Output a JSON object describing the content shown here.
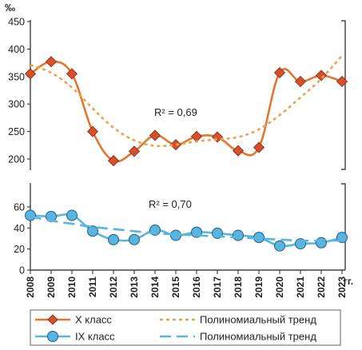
{
  "chart_data": {
    "type": "line",
    "unit_label": "‰",
    "x_suffix": "гг.",
    "x": [
      2008,
      2009,
      2010,
      2011,
      2012,
      2013,
      2014,
      2015,
      2016,
      2017,
      2018,
      2019,
      2020,
      2021,
      2022,
      2023
    ],
    "panels": [
      {
        "ylim": [
          175,
          450
        ],
        "yticks": [
          200,
          250,
          300,
          350,
          400,
          450
        ],
        "r2_label": "R² = 0,69",
        "series": [
          {
            "name": "X класс",
            "color": "#e2782f",
            "marker": "diamond",
            "marker_fill": "#d94f2b",
            "values": [
              355,
              377,
              355,
              250,
              197,
              214,
              243,
              226,
              241,
              240,
              215,
              221,
              357,
              341,
              352,
              341
            ]
          },
          {
            "name": "Полиномиальный тренд",
            "color": "#f0a050",
            "style": "dotted",
            "values": [
              371,
              357,
              330,
              292,
              257,
              234,
              224,
              226,
              232,
              236,
              240,
              254,
              280,
              312,
              346,
              388
            ]
          }
        ]
      },
      {
        "ylim": [
          0,
          70
        ],
        "yticks": [
          0,
          20,
          40,
          60
        ],
        "r2_label": "R² = 0,70",
        "series": [
          {
            "name": "IX класс",
            "color": "#5ab4e0",
            "marker": "circle",
            "marker_fill": "#5ab4e0",
            "values": [
              52,
              51,
              52,
              37,
              29,
              29,
              38,
              33,
              36,
              35,
              33,
              31,
              23,
              25,
              26,
              31
            ]
          },
          {
            "name": "Полиномиальный тренд",
            "color": "#5ab4e0",
            "style": "dashed",
            "values": [
              51,
              47,
              44,
              41,
              39,
              37,
              35,
              34,
              33,
              32,
              31,
              30,
              29,
              28,
              28,
              28
            ]
          }
        ]
      }
    ],
    "legend": [
      {
        "label": "X класс",
        "kind": "line-diamond",
        "color": "#e2782f"
      },
      {
        "label": "Полиномиальный тренд",
        "kind": "dotted",
        "color": "#f0a050"
      },
      {
        "label": "IX класс",
        "kind": "line-circle",
        "color": "#5ab4e0"
      },
      {
        "label": "Полиномиальный тренд",
        "kind": "dashed",
        "color": "#5ab4e0"
      }
    ]
  }
}
